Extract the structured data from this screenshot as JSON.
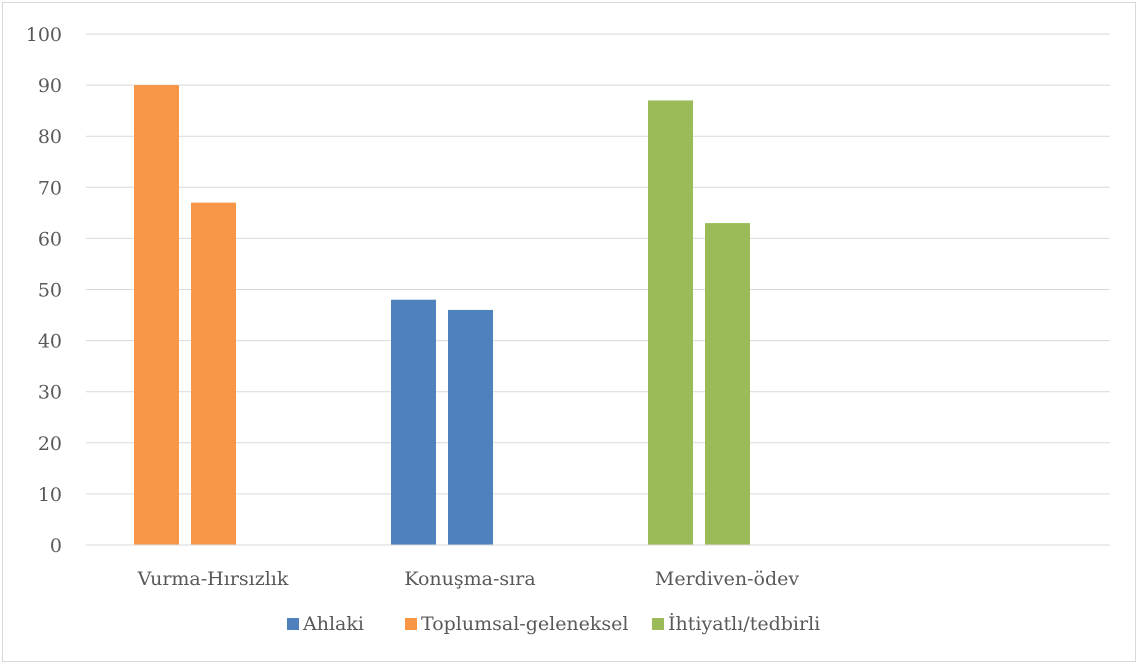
{
  "chart_data": {
    "type": "bar",
    "categories": [
      "Vurma-Hırsızlık",
      "Konuşma-sıra",
      "Merdiven-ödev"
    ],
    "series": [
      {
        "name": "Ahlaki",
        "color": "#4f81bd"
      },
      {
        "name": "Toplumsal-geleneksel",
        "color": "#f79646"
      },
      {
        "name": "İhtiyatlı/tedbirli",
        "color": "#9bbb59"
      }
    ],
    "bars": [
      {
        "category": "Vurma-Hırsızlık",
        "series": "Toplumsal-geleneksel",
        "value": 90
      },
      {
        "category": "Vurma-Hırsızlık",
        "series": "Toplumsal-geleneksel",
        "value": 67
      },
      {
        "category": "Konuşma-sıra",
        "series": "Ahlaki",
        "value": 48
      },
      {
        "category": "Konuşma-sıra",
        "series": "Ahlaki",
        "value": 46
      },
      {
        "category": "Merdiven-ödev",
        "series": "İhtiyatlı/tedbirli",
        "value": 87
      },
      {
        "category": "Merdiven-ödev",
        "series": "İhtiyatlı/tedbirli",
        "value": 63
      }
    ],
    "y_ticks": [
      "0",
      "10",
      "20",
      "30",
      "40",
      "50",
      "60",
      "70",
      "80",
      "90",
      "100"
    ],
    "ylim": [
      0,
      100
    ],
    "grid": true,
    "legend_position": "bottom",
    "title": "",
    "xlabel": "",
    "ylabel": ""
  }
}
